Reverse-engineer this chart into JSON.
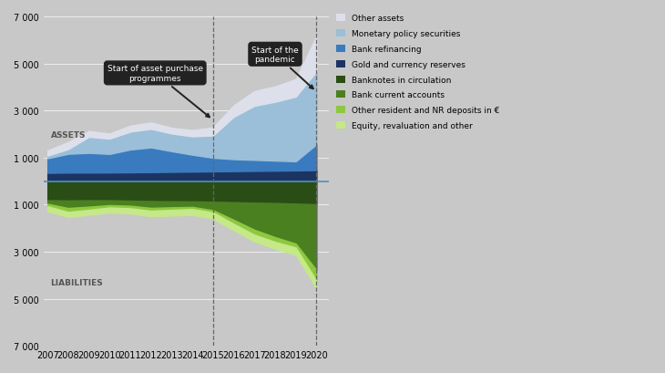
{
  "background_color": "#c8c8c8",
  "years": [
    2007,
    2008,
    2009,
    2010,
    2011,
    2012,
    2013,
    2014,
    2015,
    2016,
    2017,
    2018,
    2019,
    2020
  ],
  "assets": {
    "gold_and_currency": [
      350,
      360,
      362,
      365,
      372,
      382,
      392,
      402,
      412,
      422,
      432,
      442,
      452,
      465
    ],
    "bank_refinancing": [
      620,
      800,
      840,
      790,
      970,
      1050,
      880,
      720,
      580,
      510,
      470,
      430,
      390,
      1100
    ],
    "monetary_policy_securities": [
      110,
      200,
      680,
      650,
      760,
      790,
      750,
      780,
      950,
      1800,
      2300,
      2500,
      2750,
      3100
    ],
    "other_assets": [
      220,
      300,
      245,
      215,
      255,
      270,
      245,
      265,
      340,
      490,
      625,
      655,
      740,
      1500
    ]
  },
  "liabilities": {
    "banknotes_in_circulation": [
      -812,
      -823,
      -813,
      -813,
      -833,
      -847,
      -857,
      -863,
      -877,
      -897,
      -917,
      -933,
      -958,
      -985
    ],
    "bank_current_accounts": [
      -155,
      -320,
      -275,
      -208,
      -215,
      -290,
      -258,
      -232,
      -360,
      -750,
      -1150,
      -1450,
      -1700,
      -2800
    ],
    "other_resident_deposits": [
      -105,
      -170,
      -133,
      -100,
      -108,
      -122,
      -108,
      -90,
      -93,
      -170,
      -213,
      -200,
      -168,
      -450
    ],
    "equity_revaluation": [
      -205,
      -213,
      -213,
      -213,
      -221,
      -233,
      -243,
      -253,
      -263,
      -271,
      -283,
      -291,
      -306,
      -325
    ]
  },
  "colors": {
    "other_assets": "#dde0ea",
    "monetary_policy_securities": "#9bbfd9",
    "bank_refinancing": "#3a7bbf",
    "gold_and_currency": "#1c3461",
    "banknotes_in_circulation": "#2a4d16",
    "bank_current_accounts": "#4a8020",
    "other_resident_deposits": "#8ec840",
    "equity_revaluation": "#c5e888"
  },
  "legend_labels": {
    "other_assets": "Other assets",
    "monetary_policy_securities": "Monetary policy securities",
    "bank_refinancing": "Bank refinancing",
    "gold_and_currency": "Gold and currency reserves",
    "banknotes_in_circulation": "Banknotes in circulation",
    "bank_current_accounts": "Bank current accounts",
    "other_resident_deposits": "Other resident and NR deposits in €",
    "equity_revaluation": "Equity, revaluation and other"
  },
  "xlim": [
    2006.8,
    2020.6
  ],
  "ylim": [
    -7000,
    7000
  ],
  "yticks": [
    -7000,
    -5000,
    -3000,
    -1000,
    1000,
    3000,
    5000,
    7000
  ],
  "xticks": [
    2007,
    2008,
    2009,
    2010,
    2011,
    2012,
    2013,
    2014,
    2015,
    2016,
    2017,
    2018,
    2019,
    2020
  ]
}
